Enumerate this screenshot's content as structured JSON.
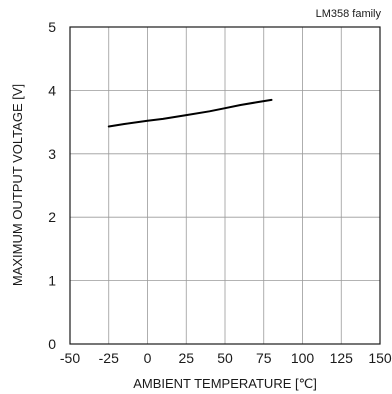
{
  "chart_data": {
    "type": "line",
    "title": "",
    "annotation": "LM358  family",
    "xlabel": "AMBIENT TEMPERATURE [℃]",
    "ylabel": "MAXIMUM OUTPUT VOLTAGE [V]",
    "xlim": [
      -50,
      150
    ],
    "ylim": [
      0,
      5
    ],
    "xticks": [
      -50,
      -25,
      0,
      25,
      50,
      75,
      100,
      125,
      150
    ],
    "yticks": [
      0,
      1,
      2,
      3,
      4,
      5
    ],
    "grid": true,
    "legend": "none",
    "series": [
      {
        "color": "#000000",
        "x": [
          -25,
          -15,
          0,
          10,
          25,
          40,
          50,
          60,
          70,
          80
        ],
        "y": [
          3.43,
          3.47,
          3.52,
          3.55,
          3.61,
          3.67,
          3.72,
          3.77,
          3.81,
          3.85
        ]
      }
    ]
  }
}
